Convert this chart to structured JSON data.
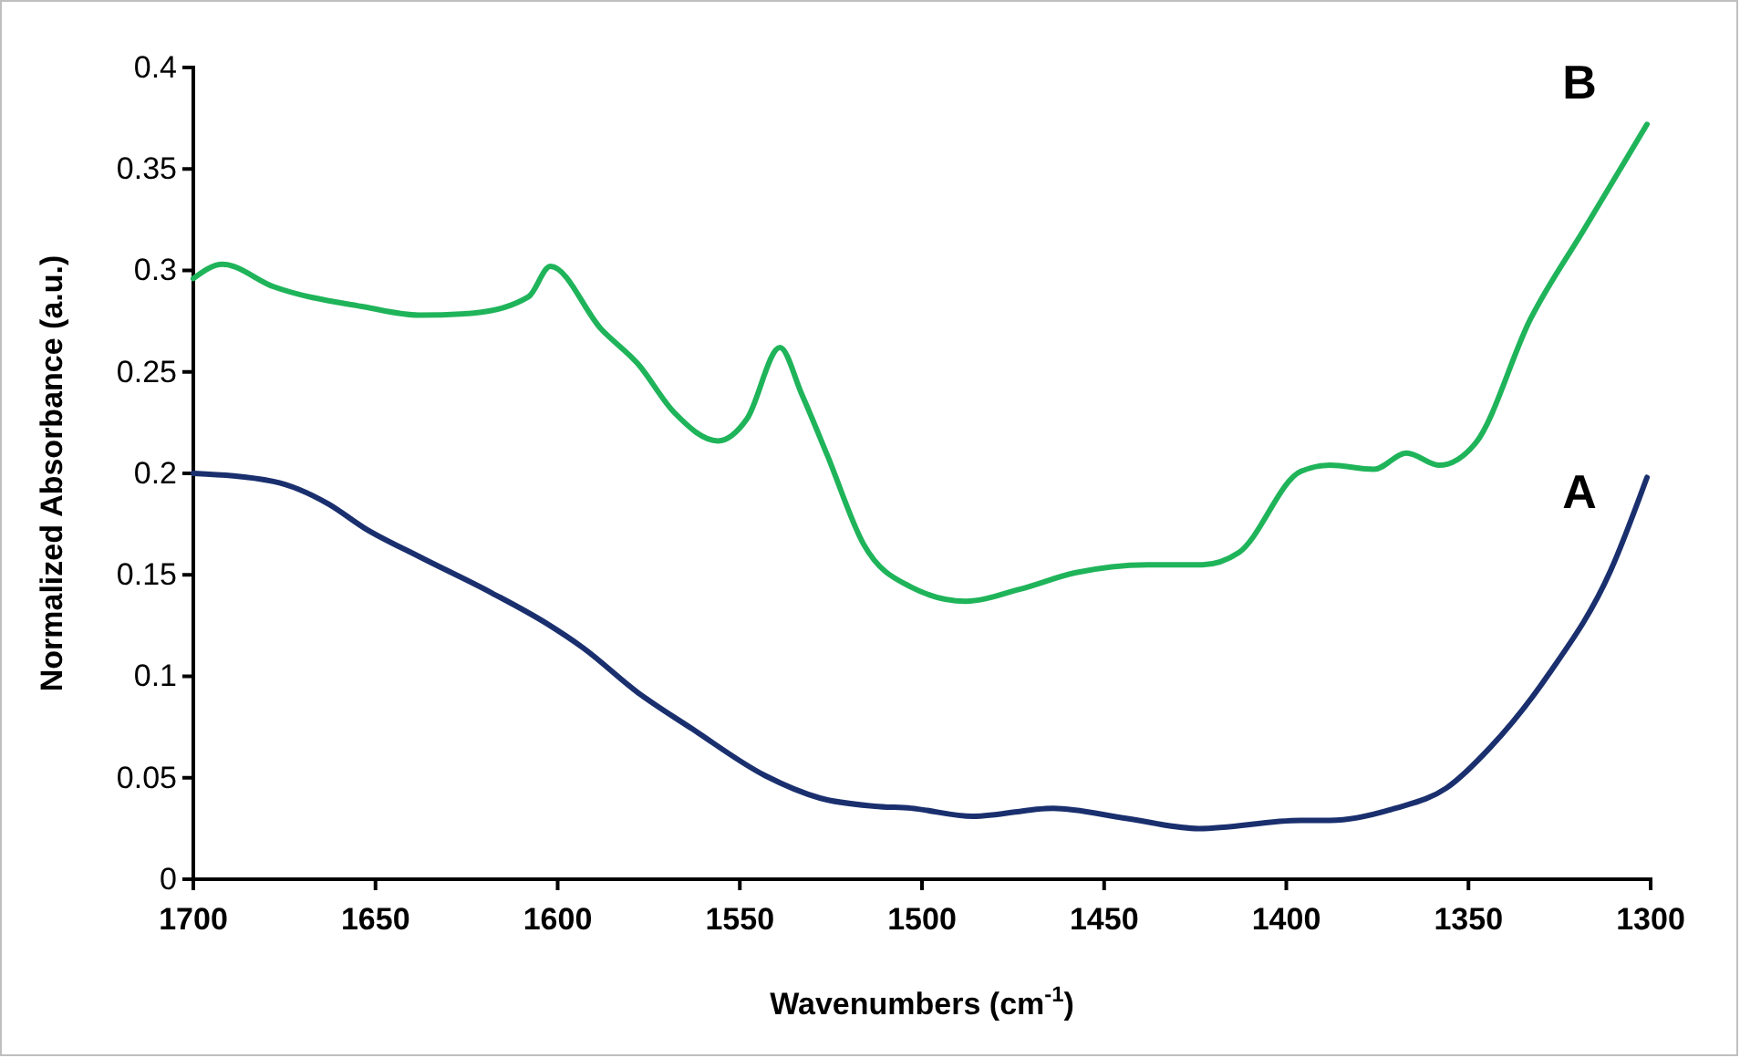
{
  "chart_data": {
    "type": "line",
    "xlabel": "Wavenumbers (cm$^{-1}$)",
    "ylabel": "Normalized Absorbance (a.u.)",
    "xlim": [
      1700,
      1300
    ],
    "xticks": [
      1700,
      1650,
      1600,
      1550,
      1500,
      1450,
      1400,
      1350,
      1300
    ],
    "ylim": [
      0,
      0.4
    ],
    "yticks": [
      0,
      0.05,
      0.1,
      0.15,
      0.2,
      0.25,
      0.3,
      0.35,
      0.4
    ],
    "grid": false,
    "marker": "none",
    "line_style": "solid",
    "series": [
      {
        "name": "A",
        "color": "#1a2f6e",
        "x": [
          1700,
          1678,
          1663,
          1653,
          1638,
          1618,
          1603,
          1593,
          1578,
          1563,
          1543,
          1528,
          1513,
          1503,
          1486,
          1464,
          1444,
          1424,
          1396,
          1388,
          1370,
          1356,
          1344,
          1328,
          1311,
          1301
        ],
        "values": [
          0.2,
          0.196,
          0.185,
          0.173,
          0.159,
          0.141,
          0.126,
          0.114,
          0.092,
          0.074,
          0.051,
          0.04,
          0.036,
          0.035,
          0.031,
          0.035,
          0.03,
          0.025,
          0.029,
          0.029,
          0.035,
          0.045,
          0.065,
          0.101,
          0.152,
          0.198
        ]
      },
      {
        "name": "B",
        "color": "#1fb45a",
        "x": [
          1700,
          1692,
          1678,
          1653,
          1638,
          1623,
          1608,
          1602,
          1588,
          1578,
          1568,
          1556,
          1548,
          1539,
          1533,
          1526,
          1516,
          1503,
          1488,
          1473,
          1458,
          1438,
          1423,
          1413,
          1396,
          1388,
          1376,
          1367,
          1358,
          1348,
          1333,
          1318,
          1301
        ],
        "values": [
          0.296,
          0.303,
          0.292,
          0.282,
          0.278,
          0.279,
          0.287,
          0.302,
          0.271,
          0.254,
          0.23,
          0.216,
          0.227,
          0.262,
          0.239,
          0.209,
          0.165,
          0.144,
          0.137,
          0.143,
          0.151,
          0.155,
          0.155,
          0.161,
          0.201,
          0.204,
          0.202,
          0.21,
          0.204,
          0.215,
          0.276,
          0.321,
          0.372
        ]
      }
    ]
  }
}
